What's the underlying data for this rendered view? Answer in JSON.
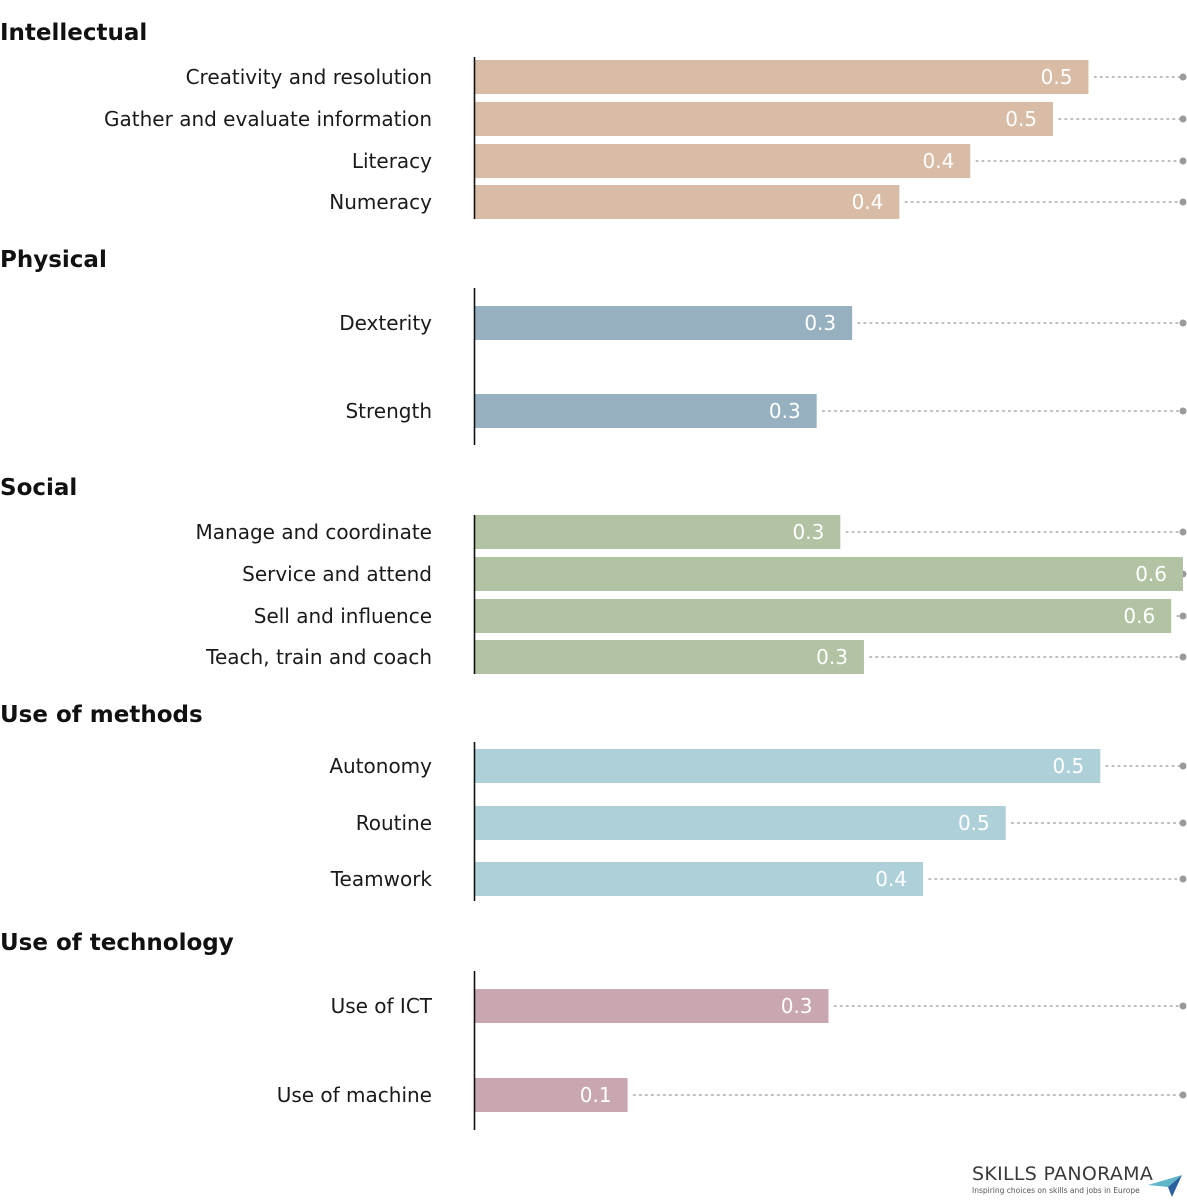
{
  "chart_data": {
    "type": "bar",
    "orientation": "horizontal",
    "xlim": [
      0,
      0.6
    ],
    "grid": false,
    "groups": [
      {
        "title": "Intellectual",
        "color": "#d9bca5",
        "categories": [
          "Creativity and resolution",
          "Gather and evaluate information",
          "Literacy",
          "Numeracy"
        ],
        "values": [
          0.52,
          0.49,
          0.42,
          0.36
        ],
        "labels": [
          "0.5",
          "0.5",
          "0.4",
          "0.4"
        ]
      },
      {
        "title": "Physical",
        "color": "#96b0c0",
        "categories": [
          "Dexterity",
          "Strength"
        ],
        "values": [
          0.32,
          0.29
        ],
        "labels": [
          "0.3",
          "0.3"
        ]
      },
      {
        "title": "Social",
        "color": "#b1c3a2",
        "categories": [
          "Manage and coordinate",
          "Service and attend",
          "Sell and influence",
          "Teach, train and coach"
        ],
        "values": [
          0.31,
          0.6,
          0.59,
          0.33
        ],
        "labels": [
          "0.3",
          "0.6",
          "0.6",
          "0.3"
        ]
      },
      {
        "title": "Use of methods",
        "color": "#add0d9",
        "categories": [
          "Autonomy",
          "Routine",
          "Teamwork"
        ],
        "values": [
          0.53,
          0.45,
          0.38
        ],
        "labels": [
          "0.5",
          "0.5",
          "0.4"
        ]
      },
      {
        "title": "Use of technology",
        "color": "#c9a7b0",
        "categories": [
          "Use of ICT",
          "Use of machine"
        ],
        "values": [
          0.3,
          0.13
        ],
        "labels": [
          "0.3",
          "0.1"
        ]
      }
    ]
  },
  "logo": {
    "title": "SKILLS PANORAMA",
    "subtitle": "Inspiring choices on skills and jobs in Europe"
  }
}
